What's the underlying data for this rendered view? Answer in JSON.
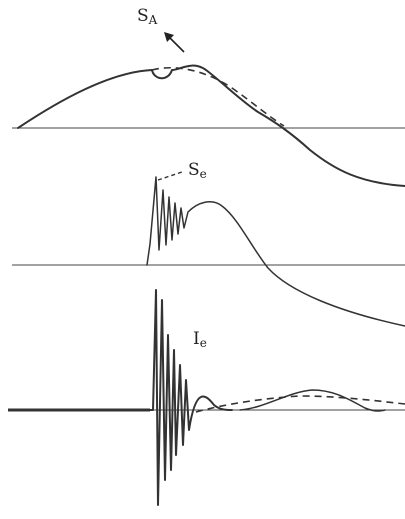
{
  "labels": {
    "sa_main": "S",
    "sa_sub": "A",
    "se_main": "S",
    "se_sub": "e",
    "ie_main": "I",
    "ie_sub": "e"
  }
}
